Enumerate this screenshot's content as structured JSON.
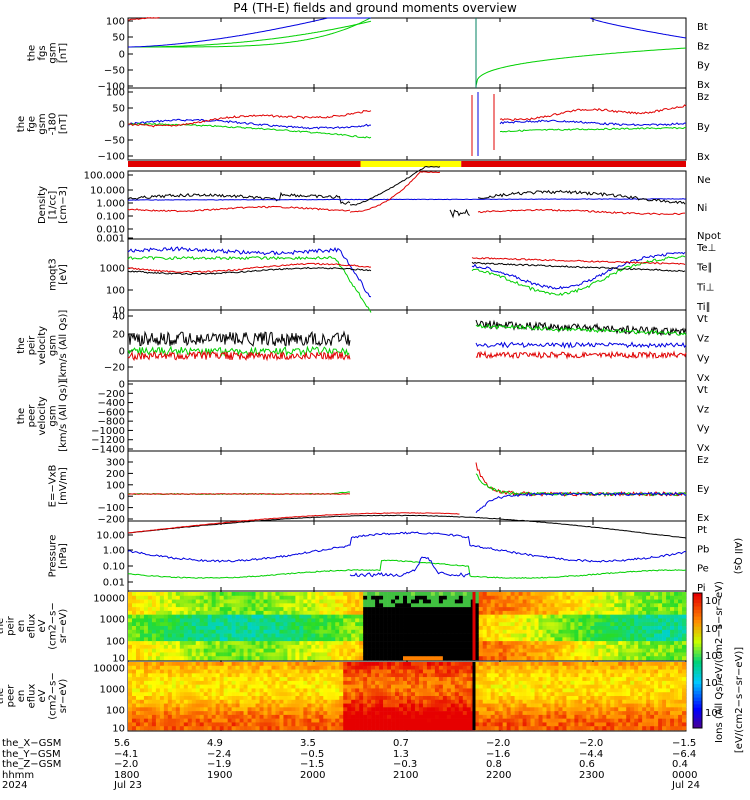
{
  "title": "P4 (TH-E) fields and ground moments overview",
  "colors": {
    "black": "#000000",
    "red": "#e00000",
    "green": "#00d000",
    "blue": "#0000e0",
    "yellow": "#ffff00"
  },
  "chart_data": {
    "type": "line",
    "x_range": [
      "1800 Jul 23",
      "0000 Jul 24"
    ],
    "data_gap": [
      "~2030",
      "~2140"
    ],
    "mode_bar": [
      {
        "from": "1800",
        "to": "2030",
        "color": "red"
      },
      {
        "from": "2030",
        "to": "2135",
        "color": "yellow"
      },
      {
        "from": "2135",
        "to": "0000",
        "color": "red"
      }
    ],
    "panels": [
      {
        "ylabel": [
          "the",
          "fgs",
          "gsm",
          "[nT]"
        ],
        "ticks": [
          "100",
          "50",
          "0",
          "−50",
          "−100"
        ],
        "series": [
          {
            "name": "Bt",
            "color": "black"
          },
          {
            "name": "Bz",
            "color": "red"
          },
          {
            "name": "By",
            "color": "green"
          },
          {
            "name": "Bx",
            "color": "blue"
          }
        ]
      },
      {
        "ylabel": [
          "the",
          "fge",
          "gsm",
          "-180",
          "[nT]"
        ],
        "ticks": [
          "100",
          "50",
          "0",
          "−50",
          "−100"
        ],
        "series": [
          {
            "name": "Bz",
            "color": "red"
          },
          {
            "name": "By",
            "color": "green"
          },
          {
            "name": "Bx",
            "color": "blue"
          }
        ]
      },
      {
        "ylabel": [
          "Density",
          "[1/cc]",
          "[cm−3]"
        ],
        "ticks": [
          "100.000",
          "10.000",
          "1.000",
          "0.100",
          "0.010",
          "0.001"
        ],
        "series": [
          {
            "name": "Ne",
            "color": "red"
          },
          {
            "name": "Ni",
            "color": "black"
          },
          {
            "name": "Npot",
            "color": "blue"
          }
        ]
      },
      {
        "ylabel": [
          "moqt3",
          "[eV]"
        ],
        "ticks": [
          "1000",
          "100",
          "10"
        ],
        "series": [
          {
            "name": "Te⊥",
            "color": "red"
          },
          {
            "name": "Te∥",
            "color": "black"
          },
          {
            "name": "Ti⊥",
            "color": "blue"
          },
          {
            "name": "Ti∥",
            "color": "green"
          }
        ]
      },
      {
        "ylabel": [
          "the",
          "peir",
          "velocity",
          "gsm",
          "[km/s (All Qs)]"
        ],
        "ticks": [
          "40",
          "20",
          "0",
          "−20"
        ],
        "series": [
          {
            "name": "Vt",
            "color": "black"
          },
          {
            "name": "Vz",
            "color": "red"
          },
          {
            "name": "Vy",
            "color": "green"
          },
          {
            "name": "Vx",
            "color": "blue"
          }
        ]
      },
      {
        "ylabel": [
          "the",
          "peer",
          "velocity",
          "gsm",
          "[km/s (All Qs)]"
        ],
        "ticks": [
          "0",
          "−200",
          "−400",
          "−600",
          "−800",
          "−1000",
          "−1200",
          "−1400"
        ],
        "series": [
          {
            "name": "Vt",
            "color": "black"
          },
          {
            "name": "Vz",
            "color": "red"
          },
          {
            "name": "Vy",
            "color": "green"
          },
          {
            "name": "Vx",
            "color": "blue"
          }
        ]
      },
      {
        "ylabel": [
          "E=−VxB",
          "[mV/m]"
        ],
        "ticks": [
          "300",
          "200",
          "100",
          "0",
          "−100",
          "−200"
        ],
        "series": [
          {
            "name": "Ez",
            "color": "red"
          },
          {
            "name": "Ey",
            "color": "green"
          },
          {
            "name": "Ex",
            "color": "blue"
          }
        ]
      },
      {
        "ylabel": [
          "Pressure",
          "[nPa]"
        ],
        "ticks": [
          "10.00",
          "1.00",
          "0.10",
          "0.01"
        ],
        "series": [
          {
            "name": "Pt",
            "color": "black"
          },
          {
            "name": "Pb",
            "color": "red"
          },
          {
            "name": "Pe",
            "color": "green"
          },
          {
            "name": "Pi",
            "color": "blue"
          }
        ],
        "legend_note": "(All Qs)"
      },
      {
        "ylabel": [
          "the",
          "peir",
          "en",
          "eflux",
          "eV",
          "(cm2−s−",
          "sr−eV)"
        ],
        "ticks": [
          "10000",
          "1000",
          "100",
          "10"
        ],
        "kind": "spectrogram"
      },
      {
        "ylabel": [
          "the",
          "peer",
          "en",
          "eflux",
          "eV",
          "(cm2−s−",
          "sr−eV)"
        ],
        "ticks": [
          "10000",
          "1000",
          "100",
          "10"
        ],
        "kind": "spectrogram"
      }
    ],
    "colorbar": {
      "ticks": [
        "10⁷",
        "10⁶",
        "10⁵",
        "10⁴",
        "10³"
      ],
      "label": "[eV/(cm2−s−sr−eV)]",
      "inner_label": "Ions (All Qs) eV/(cm2−s−sr−eV)"
    },
    "footer": {
      "rows": [
        {
          "label": "the_X−GSM",
          "values": [
            "5.6",
            "4.9",
            "3.5",
            "0.7",
            "−2.0",
            "−2.0",
            "−1.5"
          ]
        },
        {
          "label": "the_Y−GSM",
          "values": [
            "−4.1",
            "−2.4",
            "−0.5",
            "1.3",
            "−1.6",
            "−4.4",
            "−6.4"
          ]
        },
        {
          "label": "the_Z−GSM",
          "values": [
            "−2.0",
            "−1.9",
            "−1.5",
            "−0.3",
            "0.8",
            "0.6",
            "0.4"
          ]
        },
        {
          "label": "hhmm",
          "values": [
            "1800",
            "1900",
            "2000",
            "2100",
            "2200",
            "2300",
            "0000"
          ]
        },
        {
          "label": "2024",
          "values": [
            "Jul 23",
            "",
            "",
            "",
            "",
            "",
            "Jul 24"
          ]
        }
      ]
    }
  }
}
